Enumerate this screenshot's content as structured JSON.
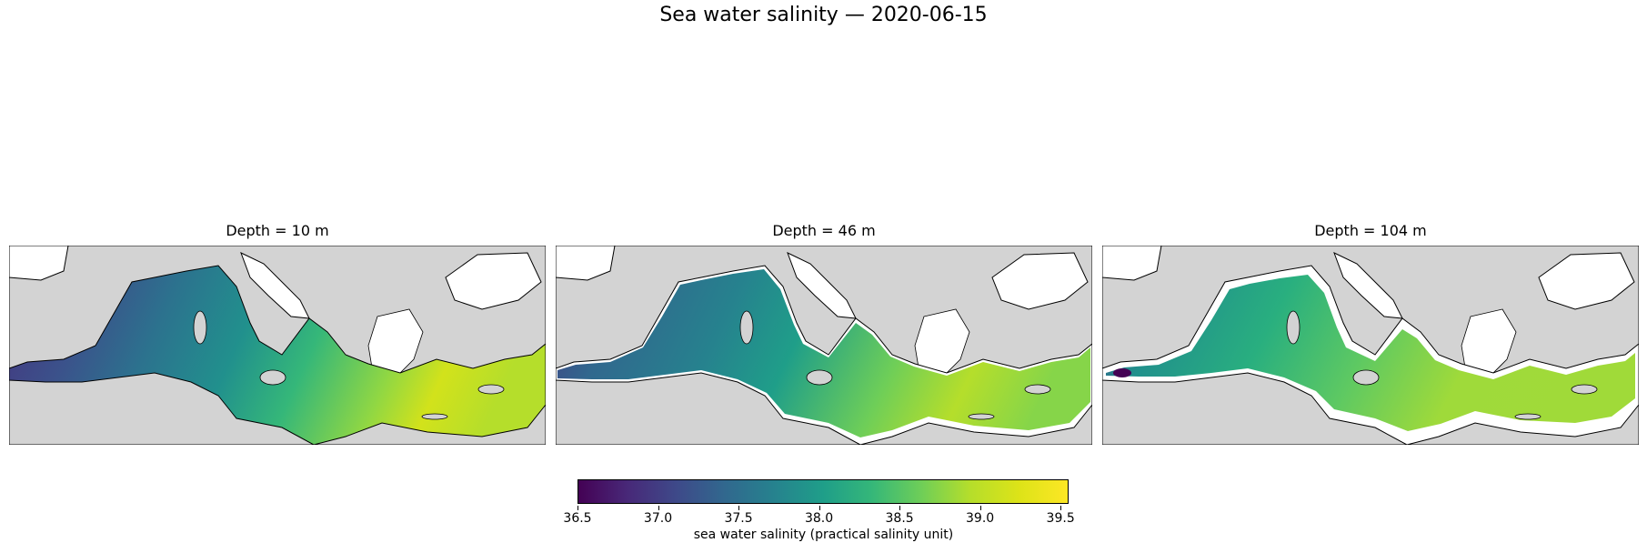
{
  "title": "Sea water salinity — 2020-06-15",
  "panels": [
    {
      "title": "Depth = 10 m"
    },
    {
      "title": "Depth = 46 m"
    },
    {
      "title": "Depth = 104 m"
    }
  ],
  "colorbar": {
    "label": "sea water salinity (practical salinity unit)",
    "min": 36.5,
    "max": 39.55,
    "ticks": [
      "36.5",
      "37.0",
      "37.5",
      "38.0",
      "38.5",
      "39.0",
      "39.5"
    ],
    "colormap": "viridis"
  },
  "colors": {
    "land": "#d3d3d3",
    "outside_domain": "#ffffff",
    "coastline": "#000000"
  }
}
